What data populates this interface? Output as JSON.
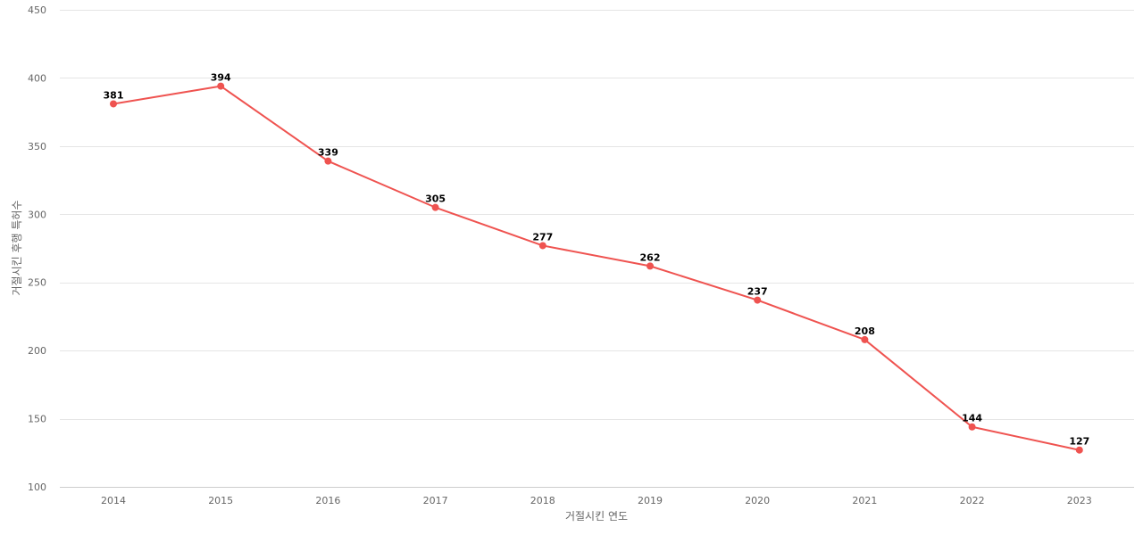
{
  "chart_data": {
    "type": "line",
    "title": "",
    "xlabel": "거절시킨 연도",
    "ylabel": "거절시킨 후행 특허수",
    "categories": [
      "2014",
      "2015",
      "2016",
      "2017",
      "2018",
      "2019",
      "2020",
      "2021",
      "2022",
      "2023"
    ],
    "series": [
      {
        "values": [
          381,
          394,
          339,
          305,
          277,
          262,
          237,
          208,
          144,
          127
        ],
        "color": "#ef5350"
      }
    ],
    "ylim": [
      100,
      450
    ],
    "yticks": [
      100,
      150,
      200,
      250,
      300,
      350,
      400,
      450
    ],
    "grid": true,
    "legend": "none",
    "data_labels": true
  }
}
